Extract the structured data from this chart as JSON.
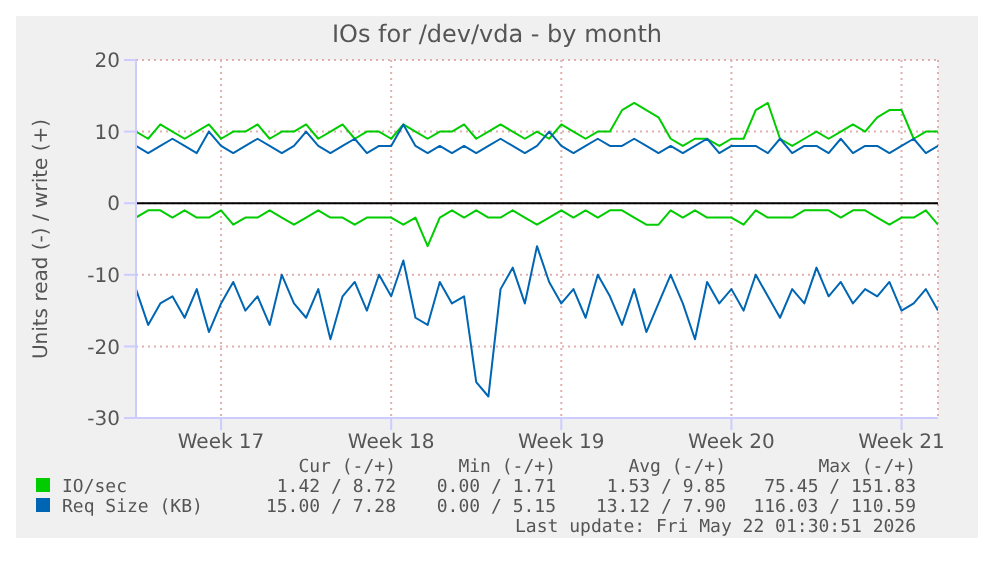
{
  "chart_data": {
    "type": "line",
    "title": "IOs for /dev/vda - by month",
    "ylabel": "Units read (-) / write (+)",
    "categories": [
      null,
      null,
      null,
      null,
      null,
      null,
      null,
      "Week 17",
      null,
      null,
      null,
      null,
      null,
      null,
      null,
      null,
      null,
      null,
      null,
      null,
      null,
      "Week 18",
      null,
      null,
      null,
      null,
      null,
      null,
      null,
      null,
      null,
      null,
      null,
      null,
      null,
      "Week 19",
      null,
      null,
      null,
      null,
      null,
      null,
      null,
      null,
      null,
      null,
      null,
      null,
      null,
      "Week 20",
      null,
      null,
      null,
      null,
      null,
      null,
      null,
      null,
      null,
      null,
      null,
      null,
      null,
      "Week 21",
      null,
      null,
      null
    ],
    "ylim": [
      -30,
      20
    ],
    "yticks": [
      -30,
      -20,
      -10,
      0,
      10,
      20
    ],
    "grid": true,
    "legend": "bottom",
    "marker": "none",
    "line_style": "solid",
    "ref_lines": [
      {
        "axis": "y",
        "value": 0,
        "color": "#000000"
      }
    ],
    "series": [
      {
        "name": "IO/sec",
        "color": "#00cc00",
        "values": [
          10,
          9,
          11,
          10,
          9,
          10,
          11,
          9,
          10,
          10,
          11,
          9,
          10,
          10,
          11,
          9,
          10,
          11,
          9,
          10,
          10,
          9,
          11,
          10,
          9,
          10,
          10,
          11,
          9,
          10,
          11,
          10,
          9,
          10,
          9,
          11,
          10,
          9,
          10,
          10,
          13,
          14,
          13,
          12,
          9,
          8,
          9,
          9,
          8,
          9,
          9,
          13,
          14,
          9,
          8,
          9,
          10,
          9,
          10,
          11,
          10,
          12,
          13,
          13,
          9,
          10,
          10
        ]
      },
      {
        "color": "#00cc00",
        "values": [
          -2,
          -1,
          -1,
          -2,
          -1,
          -2,
          -2,
          -1,
          -3,
          -2,
          -2,
          -1,
          -2,
          -3,
          -2,
          -1,
          -2,
          -2,
          -3,
          -2,
          -2,
          -2,
          -3,
          -2,
          -6,
          -2,
          -1,
          -2,
          -1,
          -2,
          -2,
          -1,
          -2,
          -3,
          -2,
          -1,
          -2,
          -1,
          -2,
          -1,
          -1,
          -2,
          -3,
          -3,
          -1,
          -2,
          -1,
          -2,
          -2,
          -2,
          -3,
          -1,
          -2,
          -2,
          -2,
          -1,
          -1,
          -1,
          -2,
          -1,
          -1,
          -2,
          -3,
          -2,
          -2,
          -1,
          -3
        ]
      },
      {
        "name": "Req Size (KB)",
        "color": "#0066b3",
        "values": [
          8,
          7,
          8,
          9,
          8,
          7,
          10,
          8,
          7,
          8,
          9,
          8,
          7,
          8,
          10,
          8,
          7,
          8,
          9,
          7,
          8,
          8,
          11,
          8,
          7,
          8,
          7,
          8,
          7,
          8,
          9,
          8,
          7,
          8,
          10,
          8,
          7,
          8,
          9,
          8,
          8,
          9,
          8,
          7,
          8,
          7,
          8,
          9,
          7,
          8,
          8,
          8,
          7,
          9,
          7,
          8,
          8,
          7,
          9,
          7,
          8,
          8,
          7,
          8,
          9,
          7,
          8
        ]
      },
      {
        "color": "#0066b3",
        "values": [
          -12,
          -17,
          -14,
          -13,
          -16,
          -12,
          -18,
          -14,
          -11,
          -15,
          -13,
          -17,
          -10,
          -14,
          -16,
          -12,
          -19,
          -13,
          -11,
          -15,
          -10,
          -13,
          -8,
          -16,
          -17,
          -11,
          -14,
          -13,
          -25,
          -27,
          -12,
          -9,
          -14,
          -6,
          -11,
          -14,
          -12,
          -16,
          -10,
          -13,
          -17,
          -12,
          -18,
          -14,
          -10,
          -14,
          -19,
          -11,
          -14,
          -12,
          -15,
          -10,
          -13,
          -16,
          -12,
          -14,
          -9,
          -13,
          -11,
          -14,
          -12,
          -13,
          -11,
          -15,
          -14,
          -12,
          -15
        ]
      }
    ],
    "annotations": [
      "Cur (-/+)",
      "Min (-/+)",
      "Avg (-/+)",
      "Max (-/+)",
      "1.42 / 8.72",
      "0.00 / 1.71",
      "1.53 / 9.85",
      "75.45 / 151.83",
      "15.00 / 7.28",
      "0.00 / 5.15",
      "13.12 / 7.90",
      "116.03 / 110.59",
      "Last update: Fri May 22 01:30:51 2026"
    ]
  }
}
